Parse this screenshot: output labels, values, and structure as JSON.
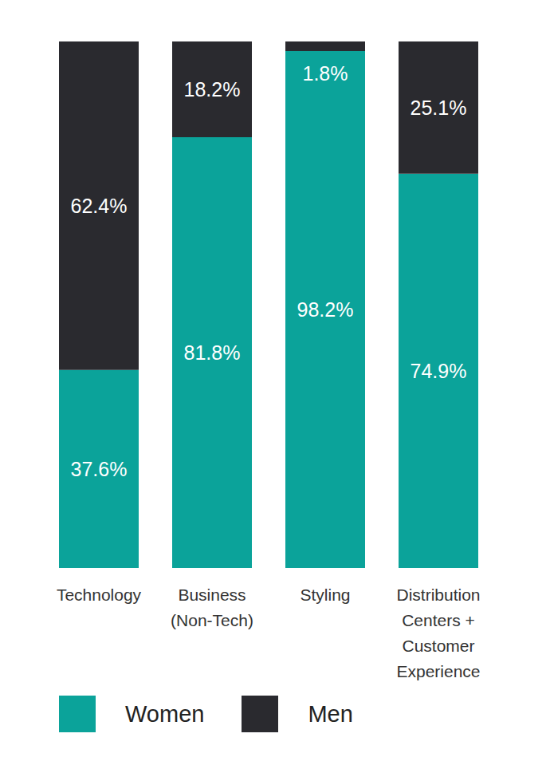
{
  "chart_data": {
    "type": "bar",
    "stacked": true,
    "categories": [
      "Technology",
      "Business (Non-Tech)",
      "Styling",
      "Distribution Centers + Customer Experience"
    ],
    "series": [
      {
        "name": "Women",
        "color": "#0ba39a",
        "values": [
          37.6,
          81.8,
          98.2,
          74.9
        ],
        "value_labels": [
          "37.6%",
          "81.8%",
          "98.2%",
          "74.9%"
        ]
      },
      {
        "name": "Men",
        "color": "#2a2a2f",
        "values": [
          62.4,
          18.2,
          1.8,
          25.1
        ],
        "value_labels": [
          "62.4%",
          "18.2%",
          "1.8%",
          "25.1%"
        ]
      }
    ],
    "ylim": [
      0,
      100
    ],
    "data_labels": true,
    "tick_labels": "x",
    "legend": "bottom"
  }
}
